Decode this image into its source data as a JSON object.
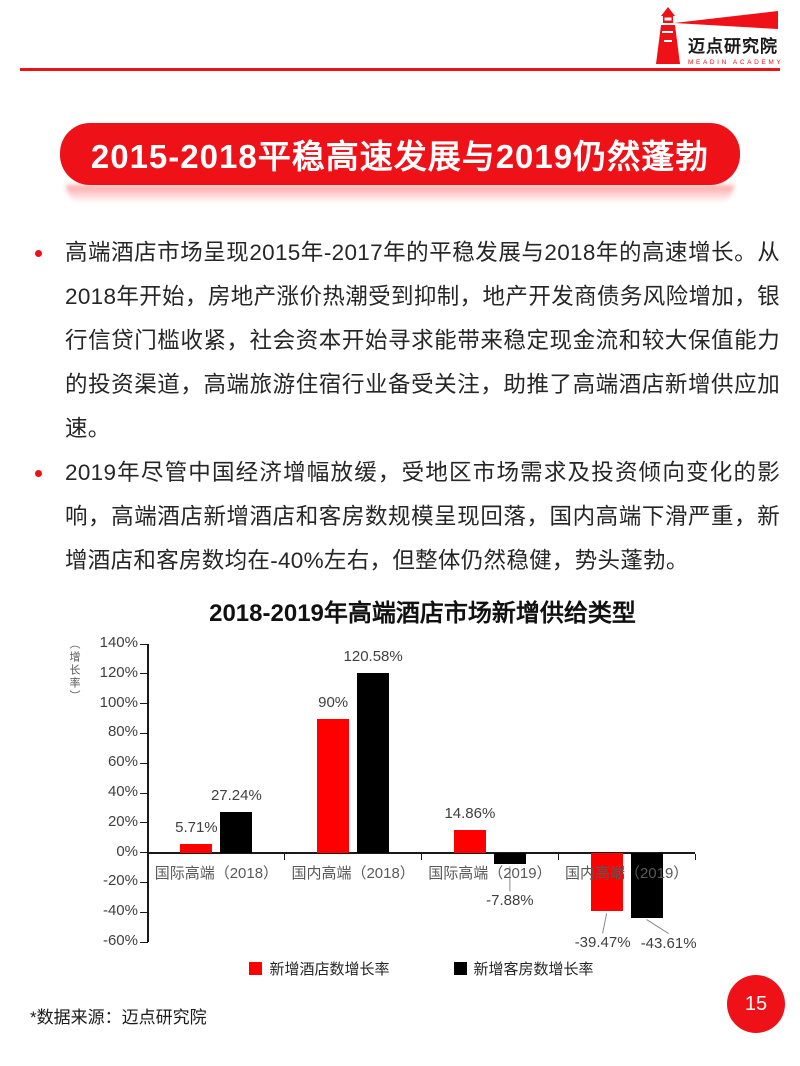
{
  "header": {
    "brand_cn": "迈点研究院",
    "brand_en": "MEADIN ACADEMY"
  },
  "banner": {
    "title": "2015-2018平稳高速发展与2019仍然蓬勃"
  },
  "bullets": [
    "高端酒店市场呈现2015年-2017年的平稳发展与2018年的高速增长。从2018年开始，房地产涨价热潮受到抑制，地产开发商债务风险增加，银行信贷门槛收紧，社会资本开始寻求能带来稳定现金流和较大保值能力的投资渠道，高端旅游住宿行业备受关注，助推了高端酒店新增供应加速。",
    "2019年尽管中国经济增幅放缓，受地区市场需求及投资倾向变化的影响，高端酒店新增酒店和客房数规模呈现回落，国内高端下滑严重，新增酒店和客房数均在-40%左右，但整体仍然稳健，势头蓬勃。"
  ],
  "chart_data": {
    "type": "bar",
    "title": "2018-2019年高端酒店市场新增供给类型",
    "ylabel": "（增长率）",
    "xlabel": "",
    "categories": [
      "国际高端（2018）",
      "国内高端（2018）",
      "国际高端（2019）",
      "国内高端（2019）"
    ],
    "series": [
      {
        "name": "新增酒店数增长率",
        "color": "#fe0000",
        "values": [
          5.71,
          90,
          14.86,
          -39.47
        ],
        "labels": [
          "5.71%",
          "90%",
          "14.86%",
          "-39.47%"
        ]
      },
      {
        "name": "新增客房数增长率",
        "color": "#000000",
        "values": [
          27.24,
          120.58,
          -7.88,
          -43.61
        ],
        "labels": [
          "27.24%",
          "120.58%",
          "-7.88%",
          "-43.61%"
        ]
      }
    ],
    "ylim": [
      -60,
      140
    ],
    "yticks": [
      "140%",
      "120%",
      "100%",
      "80%",
      "60%",
      "40%",
      "20%",
      "0%",
      "-20%",
      "-40%",
      "-60%"
    ],
    "grid": false,
    "legend_position": "bottom"
  },
  "footer": {
    "source_note": "*数据来源：迈点研究院",
    "page_number": "15"
  },
  "colors": {
    "accent_red": "#ee1118",
    "bar_red": "#fe0000",
    "bar_black": "#000000"
  }
}
